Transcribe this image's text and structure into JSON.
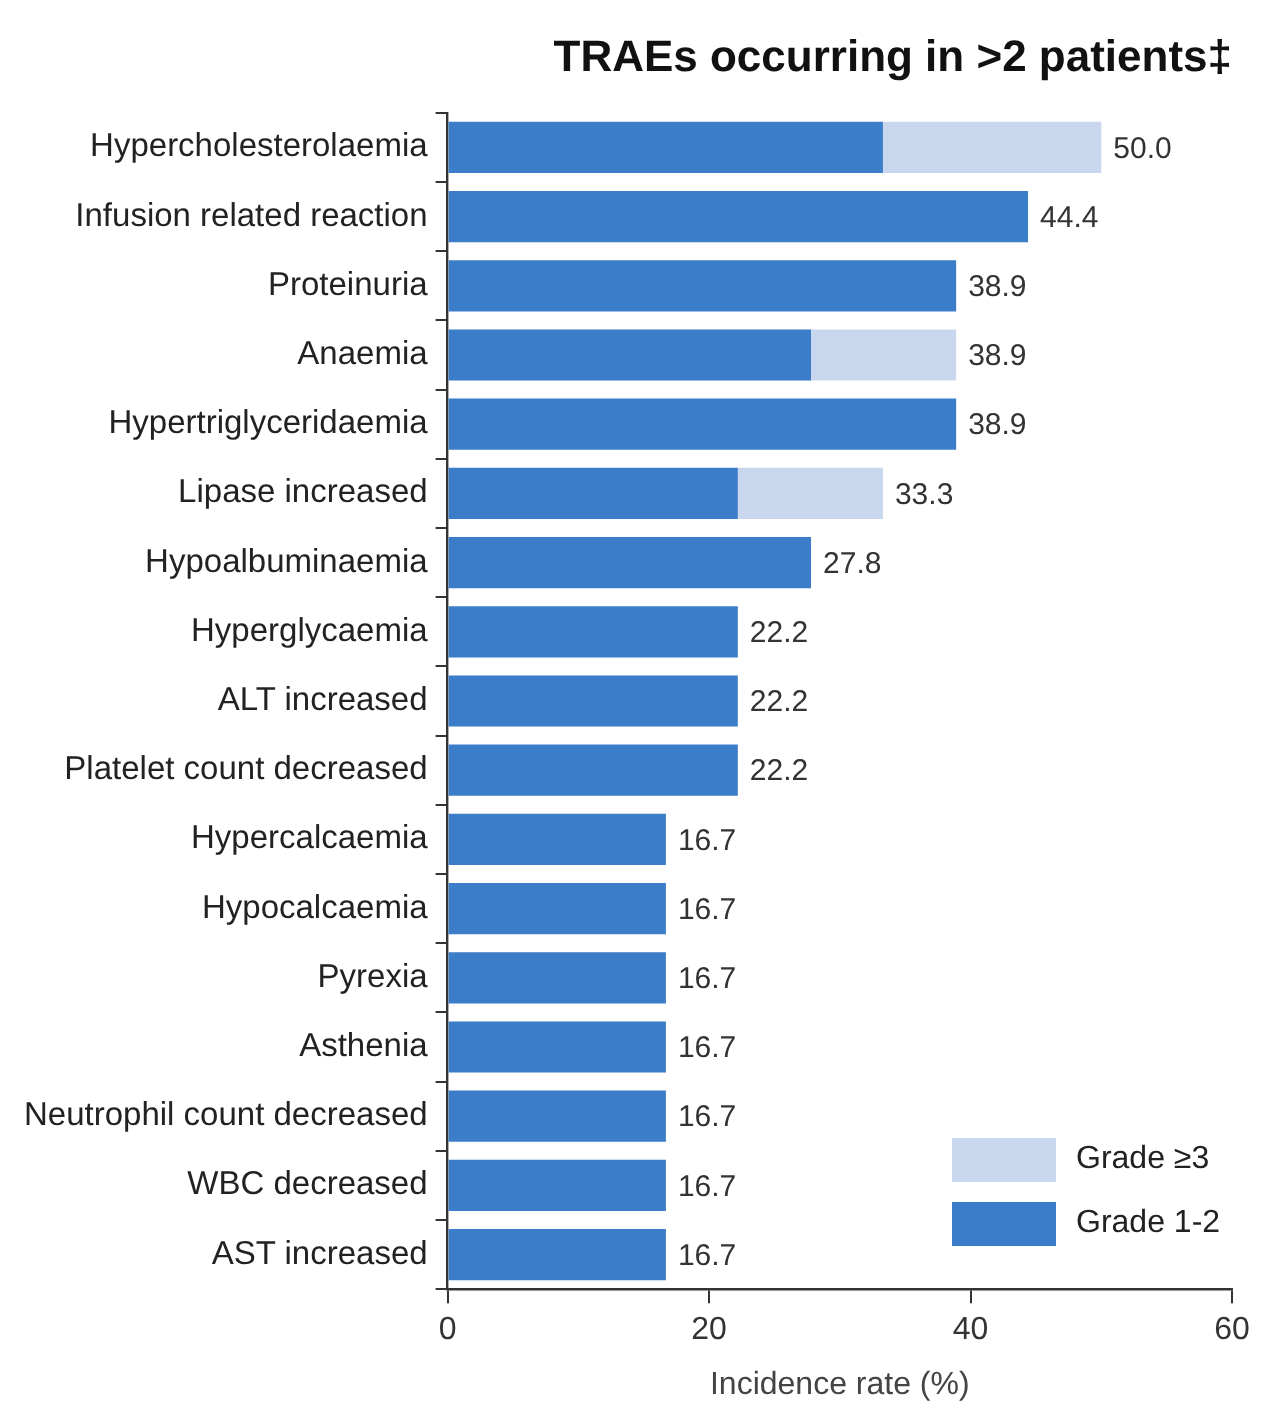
{
  "chart_data": {
    "type": "bar",
    "orientation": "horizontal",
    "stacked": true,
    "title": "TRAEs occurring in >2 patients‡",
    "xlabel": "Incidence rate (%)",
    "categories": [
      "Hypercholesterolaemia",
      "Infusion related reaction",
      "Proteinuria",
      "Anaemia",
      "Hypertriglyceridaemia",
      "Lipase increased",
      "Hypoalbuminaemia",
      "Hyperglycaemia",
      "ALT increased",
      "Platelet count decreased",
      "Hypercalcaemia",
      "Hypocalcaemia",
      "Pyrexia",
      "Asthenia",
      "Neutrophil count decreased",
      "WBC decreased",
      "AST increased"
    ],
    "series": [
      {
        "name": "Grade 1-2",
        "color": "#3b7dc8",
        "values": [
          33.3,
          44.4,
          38.9,
          27.8,
          38.9,
          22.2,
          27.8,
          22.2,
          22.2,
          22.2,
          16.7,
          16.7,
          16.7,
          16.7,
          16.7,
          16.7,
          16.7
        ]
      },
      {
        "name": "Grade ≥3",
        "color": "#c9d7ee",
        "values": [
          16.7,
          null,
          null,
          11.1,
          null,
          11.1,
          null,
          null,
          null,
          null,
          null,
          null,
          null,
          null,
          null,
          null,
          null
        ]
      }
    ],
    "totals": [
      "50.0",
      "44.4",
      "38.9",
      "38.9",
      "38.9",
      "33.3",
      "27.8",
      "22.2",
      "22.2",
      "22.2",
      "16.7",
      "16.7",
      "16.7",
      "16.7",
      "16.7",
      "16.7",
      "16.7"
    ],
    "xlim": [
      0,
      60
    ],
    "xticks": [
      0,
      20,
      40,
      60
    ],
    "grid": false,
    "legend": "bottom right"
  }
}
